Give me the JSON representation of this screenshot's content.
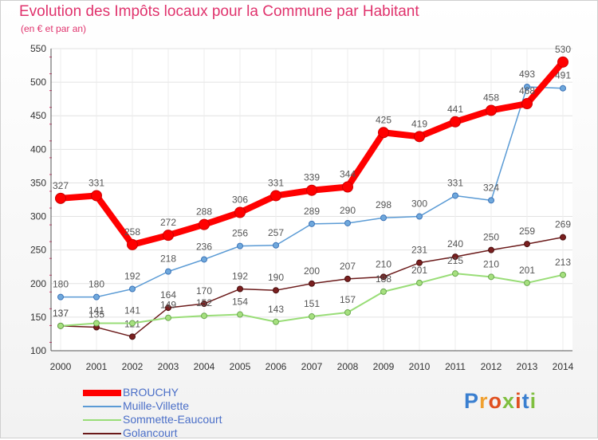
{
  "header": {
    "title": "Evolution des Impôts locaux pour la Commune par Habitant",
    "subtitle": "(en € et par an)"
  },
  "chart_data": {
    "type": "line",
    "x": [
      "2000",
      "2001",
      "2002",
      "2003",
      "2004",
      "2005",
      "2006",
      "2007",
      "2008",
      "2009",
      "2010",
      "2011",
      "2012",
      "2013",
      "2014"
    ],
    "ylim": [
      100,
      550
    ],
    "yticks": [
      100,
      150,
      200,
      250,
      300,
      350,
      400,
      450,
      500,
      550
    ],
    "grid": true,
    "legend_position": "bottom-left",
    "series": [
      {
        "name": "BROUCHY",
        "color": "#ff0000",
        "values": [
          327,
          331,
          258,
          272,
          288,
          306,
          331,
          339,
          344,
          425,
          419,
          441,
          458,
          468,
          530
        ]
      },
      {
        "name": "Muille-Villette",
        "color": "#5b9bd5",
        "values": [
          180,
          180,
          192,
          218,
          236,
          256,
          257,
          289,
          290,
          298,
          300,
          331,
          324,
          493,
          491
        ]
      },
      {
        "name": "Sommette-Eaucourt",
        "color": "#99dd77",
        "values": [
          137,
          141,
          141,
          149,
          152,
          154,
          143,
          151,
          157,
          188,
          201,
          215,
          210,
          201,
          213
        ]
      },
      {
        "name": "Golancourt",
        "color": "#6b1a1a",
        "values": [
          137,
          135,
          121,
          164,
          170,
          192,
          190,
          200,
          207,
          210,
          231,
          240,
          250,
          259,
          269
        ]
      }
    ]
  },
  "logo": {
    "letters": [
      "P",
      "r",
      "o",
      "x",
      "i",
      "t",
      "i"
    ],
    "colors": [
      "#3a7fd0",
      "#f0a030",
      "#e05020",
      "#7fbf3f",
      "#e05020",
      "#3a7fd0",
      "#7fbf3f"
    ]
  }
}
